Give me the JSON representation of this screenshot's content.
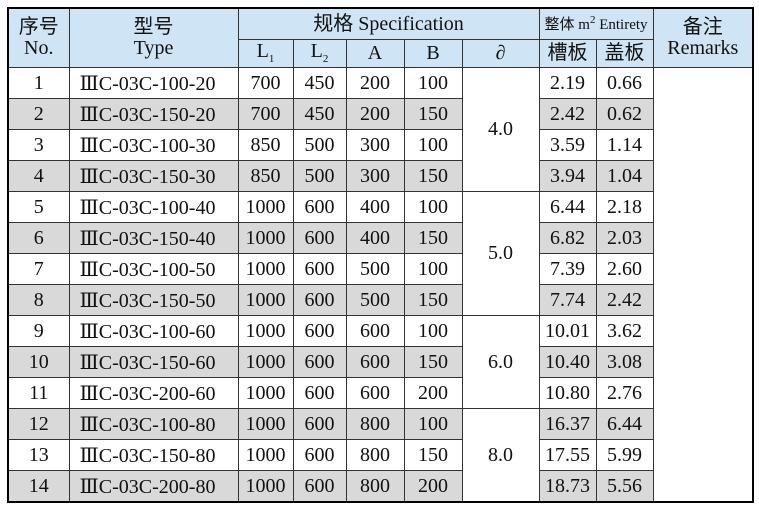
{
  "header": {
    "no_zh": "序号",
    "no_en": "No.",
    "type_zh": "型号",
    "type_en": "Type",
    "spec": "规格 Specification",
    "l1": {
      "main": "L",
      "sub": "1"
    },
    "l2": {
      "main": "L",
      "sub": "2"
    },
    "a": "A",
    "b": "B",
    "delta": "∂",
    "entirety": {
      "pre": "整体 m",
      "sup": "2",
      "post": " Entirety"
    },
    "trough": "槽板",
    "cover": "盖板",
    "remarks_zh": "备注",
    "remarks_en": "Remarks"
  },
  "table": {
    "groups": [
      {
        "delta": "4.0",
        "rows": [
          [
            "1",
            "ⅢC-03C-100-20",
            "700",
            "450",
            "200",
            "100",
            "2.19",
            "0.66"
          ],
          [
            "2",
            "ⅢC-03C-150-20",
            "700",
            "450",
            "200",
            "150",
            "2.42",
            "0.62"
          ],
          [
            "3",
            "ⅢC-03C-100-30",
            "850",
            "500",
            "300",
            "100",
            "3.59",
            "1.14"
          ],
          [
            "4",
            "ⅢC-03C-150-30",
            "850",
            "500",
            "300",
            "150",
            "3.94",
            "1.04"
          ]
        ]
      },
      {
        "delta": "5.0",
        "rows": [
          [
            "5",
            "ⅢC-03C-100-40",
            "1000",
            "600",
            "400",
            "100",
            "6.44",
            "2.18"
          ],
          [
            "6",
            "ⅢC-03C-150-40",
            "1000",
            "600",
            "400",
            "150",
            "6.82",
            "2.03"
          ],
          [
            "7",
            "ⅢC-03C-100-50",
            "1000",
            "600",
            "500",
            "100",
            "7.39",
            "2.60"
          ],
          [
            "8",
            "ⅢC-03C-150-50",
            "1000",
            "600",
            "500",
            "150",
            "7.74",
            "2.42"
          ]
        ]
      },
      {
        "delta": "6.0",
        "rows": [
          [
            "9",
            "ⅢC-03C-100-60",
            "1000",
            "600",
            "600",
            "100",
            "10.01",
            "3.62"
          ],
          [
            "10",
            "ⅢC-03C-150-60",
            "1000",
            "600",
            "600",
            "150",
            "10.40",
            "3.08"
          ],
          [
            "11",
            "ⅢC-03C-200-60",
            "1000",
            "600",
            "600",
            "200",
            "10.80",
            "2.76"
          ]
        ]
      },
      {
        "delta": "8.0",
        "rows": [
          [
            "12",
            "ⅢC-03C-100-80",
            "1000",
            "600",
            "800",
            "100",
            "16.37",
            "6.44"
          ],
          [
            "13",
            "ⅢC-03C-150-80",
            "1000",
            "600",
            "800",
            "150",
            "17.55",
            "5.99"
          ],
          [
            "14",
            "ⅢC-03C-200-80",
            "1000",
            "600",
            "800",
            "200",
            "18.73",
            "5.56"
          ]
        ]
      }
    ]
  }
}
